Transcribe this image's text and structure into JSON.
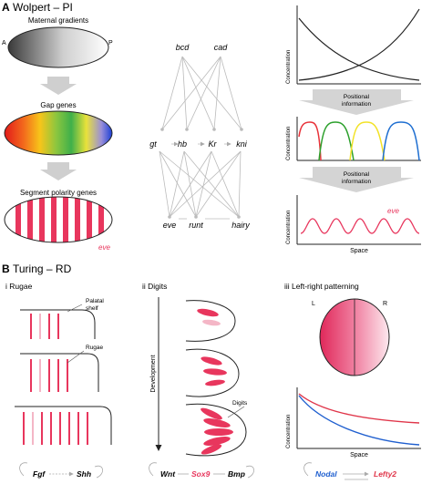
{
  "panelA": {
    "letter": "A",
    "title": "Wolpert – PI",
    "gradient_title": "Maternal gradients",
    "axis_a": "A",
    "axis_p": "P",
    "gap_title": "Gap genes",
    "seg_title": "Segment polarity genes",
    "eve": "eve",
    "genes_top": [
      "bcd",
      "cad"
    ],
    "genes_mid": [
      "gt",
      "hb",
      "Kr",
      "kni"
    ],
    "genes_bot": [
      "eve",
      "runt",
      "hairy"
    ],
    "ylabel": "Concentration",
    "positional_info": [
      "Positional",
      "information"
    ],
    "xlabel": "Space",
    "gap_colors": [
      "#e8333a",
      "#2ca02c",
      "#f2e227",
      "#1f6fd1"
    ]
  },
  "panelB": {
    "letter": "B",
    "title": "Turing – RD",
    "i_title": "i Rugae",
    "palatal": [
      "Palatal",
      "shelf"
    ],
    "rugae": "Rugae",
    "ii_title": "ii Digits",
    "development": "Development",
    "digits": "Digits",
    "iii_title": "iii Left-right patterning",
    "L": "L",
    "R": "R",
    "ylabel": "Concentration",
    "xlabel": "Space",
    "fgf": "Fgf",
    "shh": "Shh",
    "wnt": "Wnt",
    "sox9": "Sox9",
    "bmp": "Bmp",
    "nodal": "Nodal",
    "lefty2": "Lefty2",
    "nodal_color": "#1f5fcf",
    "lefty_color": "#e0364a",
    "accent_pink": "#e8365d"
  }
}
